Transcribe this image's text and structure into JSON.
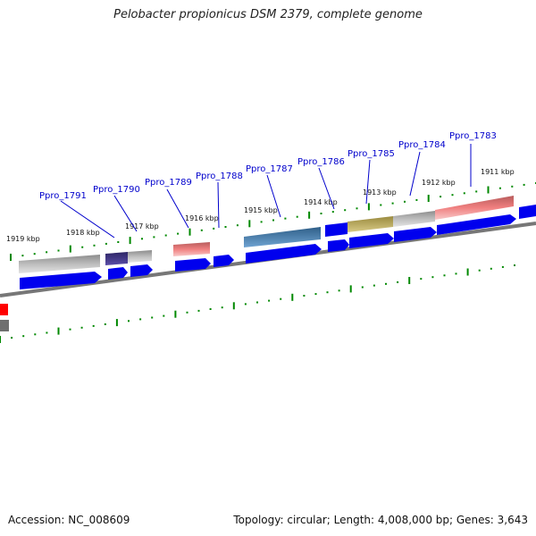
{
  "title": "Pelobacter propionicus DSM 2379, complete genome",
  "footer": {
    "accession": "Accession: NC_008609",
    "topology": "Topology: circular; Length: 4,008,000 bp; Genes: 3,643"
  },
  "colors": {
    "cds_arrow": "#0000ee",
    "backbone": "#7f7f7f",
    "tick": "#008800",
    "label_text": "#0000cc",
    "label_leader": "#0000cc",
    "cog_red": "#f08080",
    "cog_gray": "#a9a9a9",
    "cog_purple": "#483d8b",
    "cog_steelblue": "#4682b4",
    "cog_olive": "#c2b36a"
  },
  "ticks": [
    "1919 kbp",
    "1918 kbp",
    "1917 kbp",
    "1916 kbp",
    "1915 kbp",
    "1914 kbp",
    "1913 kbp",
    "1912 kbp",
    "1911 kbp"
  ],
  "genes": [
    {
      "label": "Ppro_1791"
    },
    {
      "label": "Ppro_1790"
    },
    {
      "label": "Ppro_1789"
    },
    {
      "label": "Ppro_1788"
    },
    {
      "label": "Ppro_1787"
    },
    {
      "label": "Ppro_1786"
    },
    {
      "label": "Ppro_1785"
    },
    {
      "label": "Ppro_1784"
    },
    {
      "label": "Ppro_1783"
    }
  ]
}
